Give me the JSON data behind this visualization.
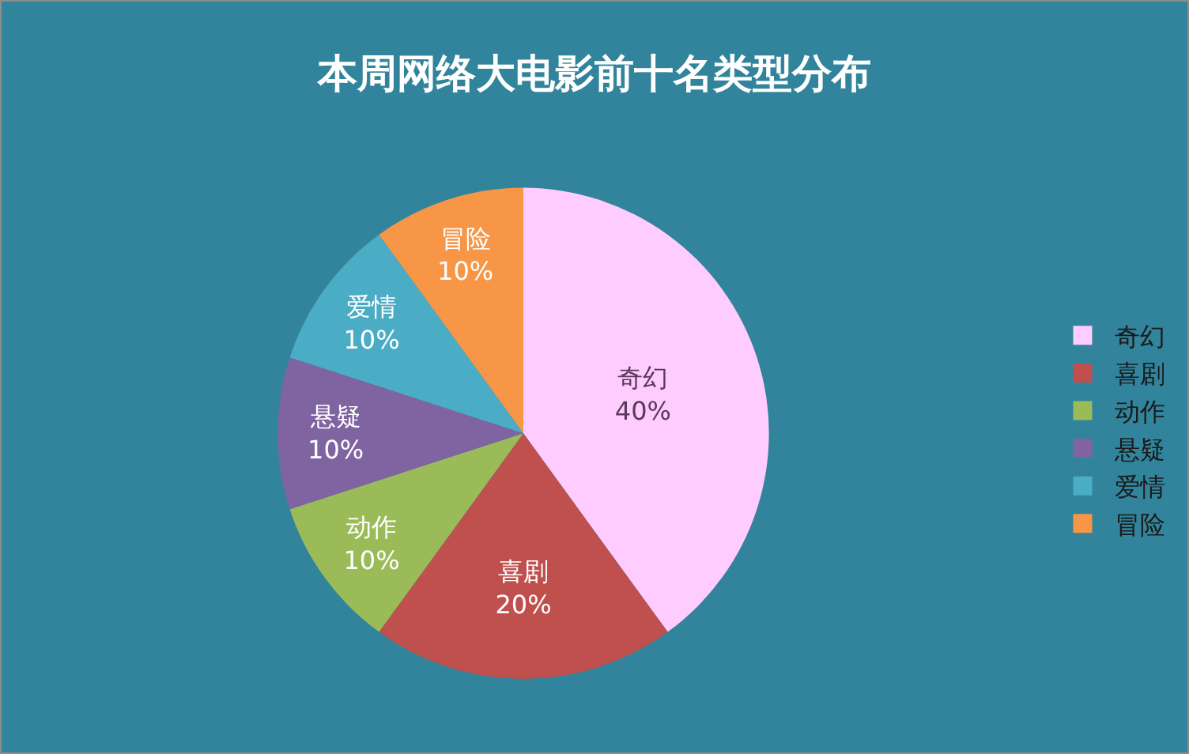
{
  "chart_data": {
    "type": "pie",
    "title": "本周网络大电影前十名类型分布",
    "categories": [
      "奇幻",
      "喜剧",
      "动作",
      "悬疑",
      "爱情",
      "冒险"
    ],
    "values": [
      40,
      20,
      10,
      10,
      10,
      10
    ],
    "value_labels": [
      "40%",
      "20%",
      "10%",
      "10%",
      "10%",
      "10%"
    ],
    "colors": [
      "#ffccff",
      "#c0504d",
      "#9bbb59",
      "#8064a2",
      "#4bacc6",
      "#f79646"
    ],
    "legend": "right"
  }
}
